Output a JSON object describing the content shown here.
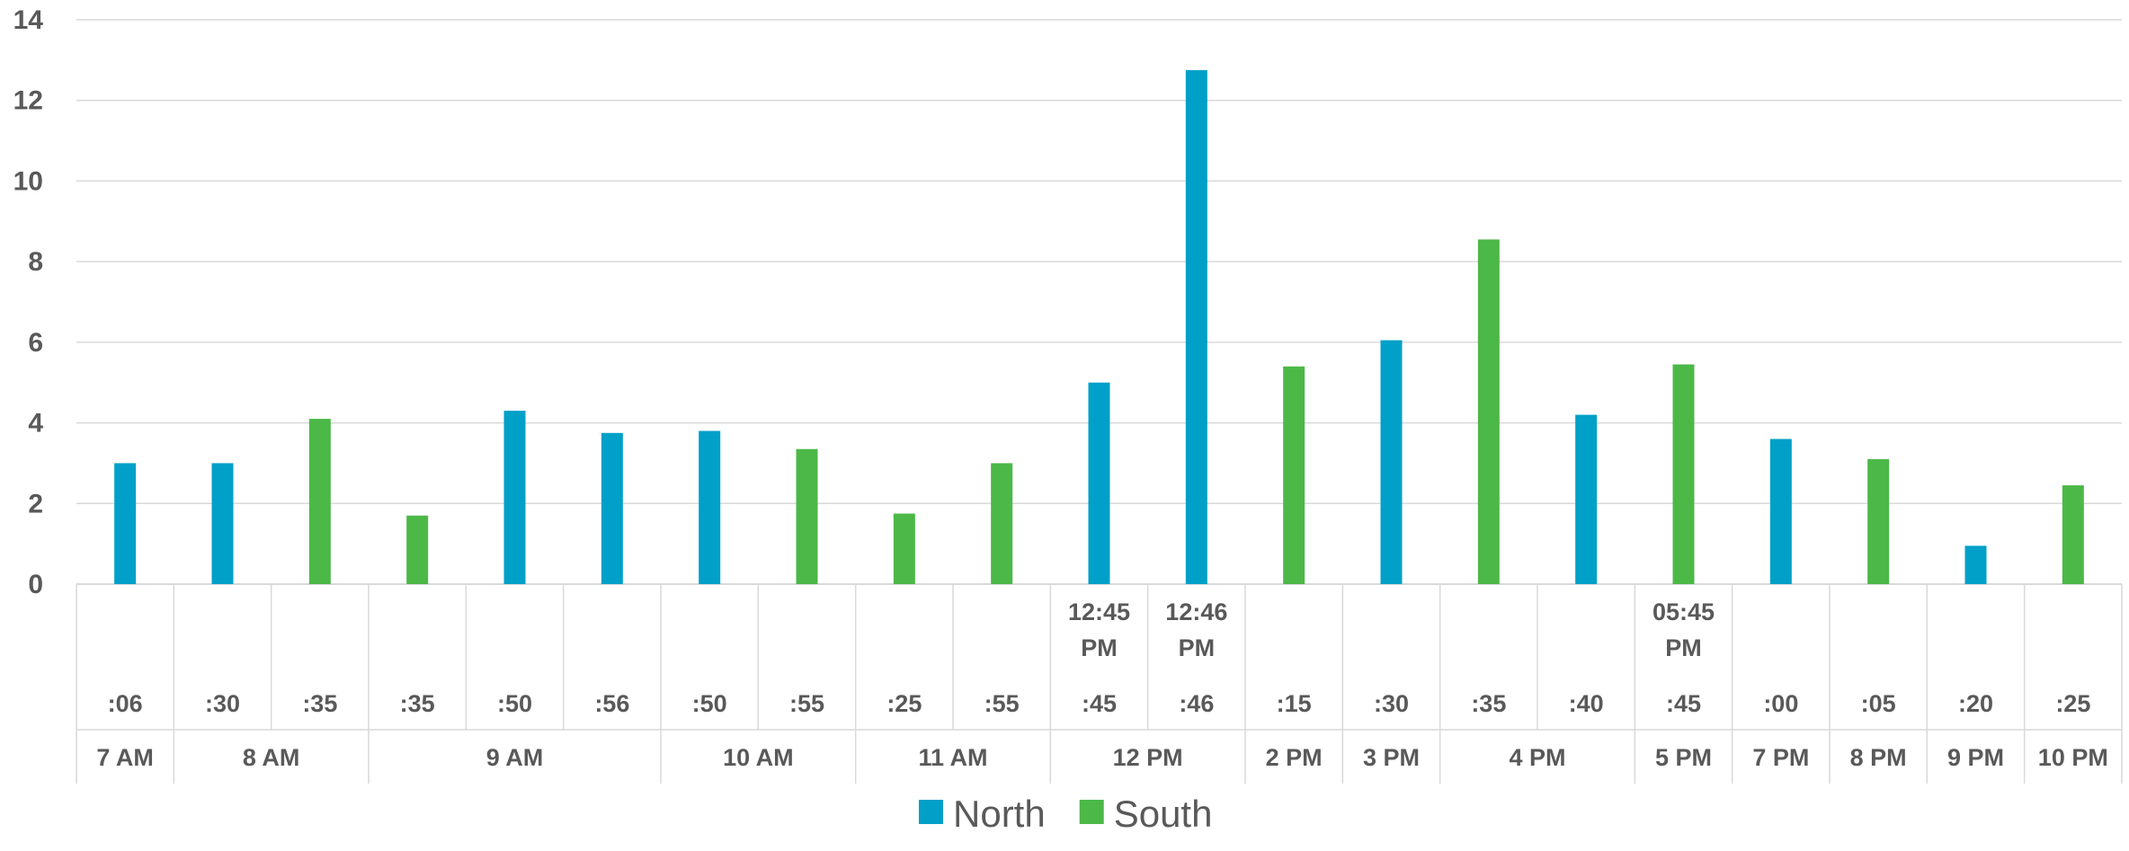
{
  "chart_data": {
    "type": "bar",
    "ylim": [
      0,
      14
    ],
    "yticks": [
      0,
      2,
      4,
      6,
      8,
      10,
      12,
      14
    ],
    "grid": true,
    "legend_position": "bottom",
    "categories": [
      {
        "minute": ":06",
        "hour": "7 AM"
      },
      {
        "minute": ":30",
        "hour": "8 AM"
      },
      {
        "minute": ":35",
        "hour": "8 AM"
      },
      {
        "minute": ":35",
        "hour": "9 AM"
      },
      {
        "minute": ":50",
        "hour": "9 AM"
      },
      {
        "minute": ":56",
        "hour": "9 AM"
      },
      {
        "minute": ":50",
        "hour": "10 AM"
      },
      {
        "minute": ":55",
        "hour": "10 AM"
      },
      {
        "minute": ":25",
        "hour": "11 AM"
      },
      {
        "minute": ":55",
        "hour": "11 AM"
      },
      {
        "minute": ":45",
        "hour": "12 PM",
        "extra": "12:45 PM"
      },
      {
        "minute": ":46",
        "hour": "12 PM",
        "extra": "12:46 PM"
      },
      {
        "minute": ":15",
        "hour": "2 PM"
      },
      {
        "minute": ":30",
        "hour": "3 PM"
      },
      {
        "minute": ":35",
        "hour": "4 PM"
      },
      {
        "minute": ":40",
        "hour": "4 PM"
      },
      {
        "minute": ":45",
        "hour": "5 PM",
        "extra": "05:45 PM"
      },
      {
        "minute": ":00",
        "hour": "7 PM"
      },
      {
        "minute": ":05",
        "hour": "8 PM"
      },
      {
        "minute": ":20",
        "hour": "9 PM"
      },
      {
        "minute": ":25",
        "hour": "10 PM"
      }
    ],
    "series": [
      {
        "name": "North",
        "color": "#00A0C8",
        "values": [
          3.0,
          3.0,
          null,
          null,
          4.3,
          3.75,
          3.8,
          null,
          null,
          null,
          5.0,
          12.75,
          null,
          6.05,
          null,
          4.2,
          null,
          3.6,
          null,
          0.95,
          null
        ]
      },
      {
        "name": "South",
        "color": "#4CB848",
        "values": [
          null,
          null,
          4.1,
          1.7,
          null,
          null,
          null,
          3.35,
          1.75,
          3.0,
          null,
          null,
          5.4,
          null,
          8.55,
          null,
          5.45,
          null,
          3.1,
          null,
          2.45
        ]
      }
    ]
  }
}
